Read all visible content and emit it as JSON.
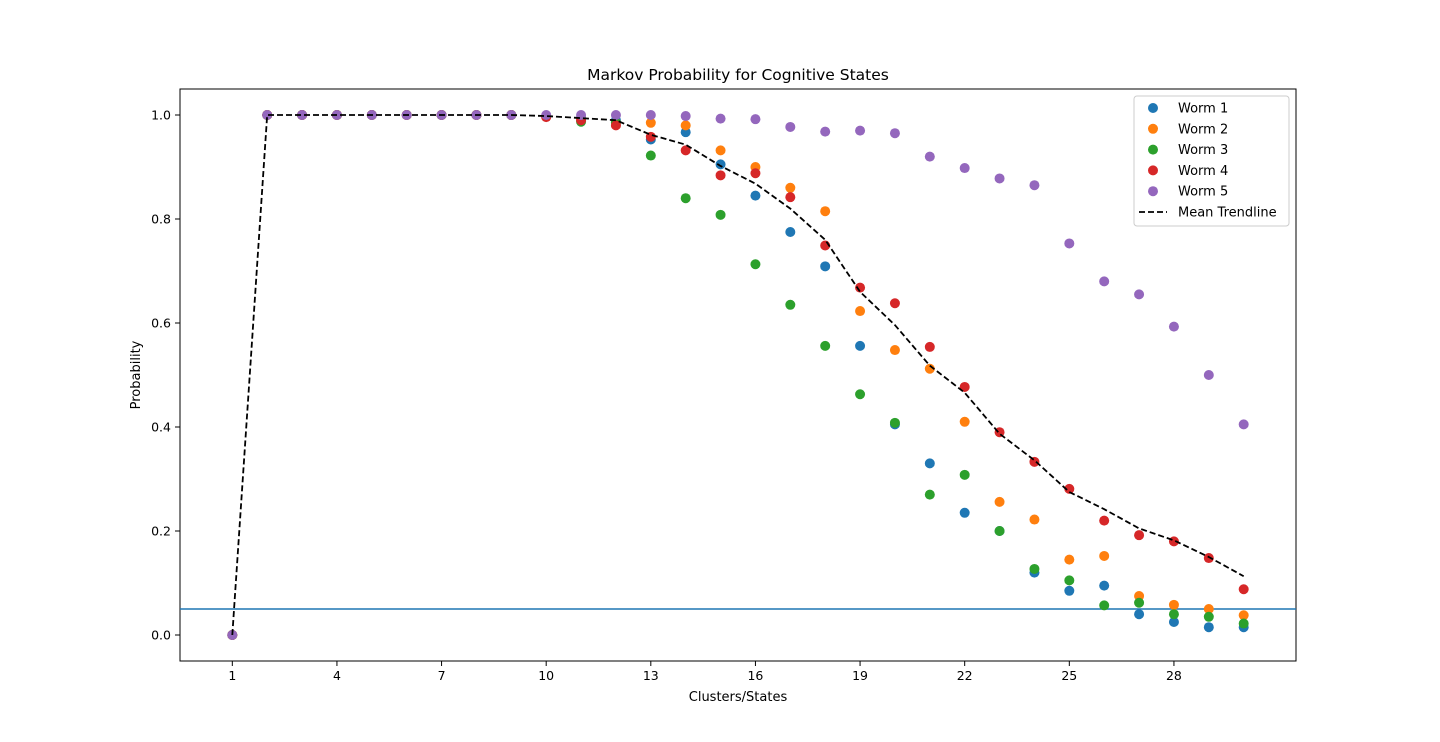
{
  "chart_data": {
    "type": "scatter",
    "title": "Markov Probability for Cognitive States",
    "xlabel": "Clusters/States",
    "ylabel": "Probability",
    "xlim": [
      -0.5,
      31.5
    ],
    "ylim": [
      -0.05,
      1.05
    ],
    "x_ticks": [
      1,
      4,
      7,
      10,
      13,
      16,
      19,
      22,
      25,
      28
    ],
    "y_ticks": [
      0.0,
      0.2,
      0.4,
      0.6,
      0.8,
      1.0
    ],
    "y_tick_labels": [
      "0.0",
      "0.2",
      "0.4",
      "0.6",
      "0.8",
      "1.0"
    ],
    "grid": false,
    "legend_position": "top-right",
    "x": [
      1,
      2,
      3,
      4,
      5,
      6,
      7,
      8,
      9,
      10,
      11,
      12,
      13,
      14,
      15,
      16,
      17,
      18,
      19,
      20,
      21,
      22,
      23,
      24,
      25,
      26,
      27,
      28,
      29,
      30
    ],
    "series": [
      {
        "name": "Worm 1",
        "color": "#1f77b4",
        "values": [
          0,
          1,
          1,
          1,
          1,
          1,
          1,
          1,
          1,
          0.998,
          0.995,
          0.99,
          0.953,
          0.967,
          0.905,
          0.845,
          0.775,
          0.709,
          0.556,
          0.405,
          0.33,
          0.235,
          0.2,
          0.12,
          0.085,
          0.095,
          0.04,
          0.025,
          0.015,
          0.015
        ]
      },
      {
        "name": "Worm 2",
        "color": "#ff7f0e",
        "values": [
          0,
          1,
          1,
          1,
          1,
          1,
          1,
          1,
          1,
          0.998,
          0.993,
          0.985,
          0.985,
          0.98,
          0.932,
          0.9,
          0.86,
          0.815,
          0.623,
          0.548,
          0.512,
          0.41,
          0.256,
          0.222,
          0.145,
          0.152,
          0.075,
          0.058,
          0.05,
          0.038
        ]
      },
      {
        "name": "Worm 3",
        "color": "#2ca02c",
        "values": [
          0,
          1,
          1,
          1,
          1,
          1,
          1,
          1,
          1,
          0.998,
          0.987,
          0.985,
          0.922,
          0.84,
          0.808,
          0.713,
          0.635,
          0.556,
          0.463,
          0.408,
          0.27,
          0.308,
          0.2,
          0.127,
          0.105,
          0.057,
          0.062,
          0.04,
          0.035,
          0.022
        ]
      },
      {
        "name": "Worm 4",
        "color": "#d62728",
        "values": [
          0,
          1,
          1,
          1,
          1,
          1,
          1,
          1,
          1,
          0.996,
          0.99,
          0.98,
          0.958,
          0.932,
          0.884,
          0.888,
          0.842,
          0.749,
          0.668,
          0.638,
          0.554,
          0.477,
          0.39,
          0.333,
          0.281,
          0.22,
          0.192,
          0.18,
          0.148,
          0.088
        ]
      },
      {
        "name": "Worm 5",
        "color": "#9467bd",
        "values": [
          0,
          1,
          1,
          1,
          1,
          1,
          1,
          1,
          1,
          1,
          1,
          1,
          1,
          0.998,
          0.993,
          0.992,
          0.977,
          0.968,
          0.97,
          0.965,
          0.92,
          0.898,
          0.878,
          0.865,
          0.753,
          0.68,
          0.655,
          0.593,
          0.5,
          0.405
        ]
      }
    ],
    "trendline": {
      "name": "Mean Trendline",
      "color": "#000000",
      "style": "dashed",
      "values": [
        0,
        1,
        1,
        1,
        1,
        1,
        1,
        1,
        1,
        0.998,
        0.994,
        0.99,
        0.962,
        0.943,
        0.902,
        0.868,
        0.82,
        0.76,
        0.66,
        0.596,
        0.518,
        0.466,
        0.387,
        0.336,
        0.275,
        0.242,
        0.205,
        0.182,
        0.15,
        0.113
      ]
    },
    "hline": {
      "y": 0.05,
      "color": "#1f77b4"
    }
  }
}
